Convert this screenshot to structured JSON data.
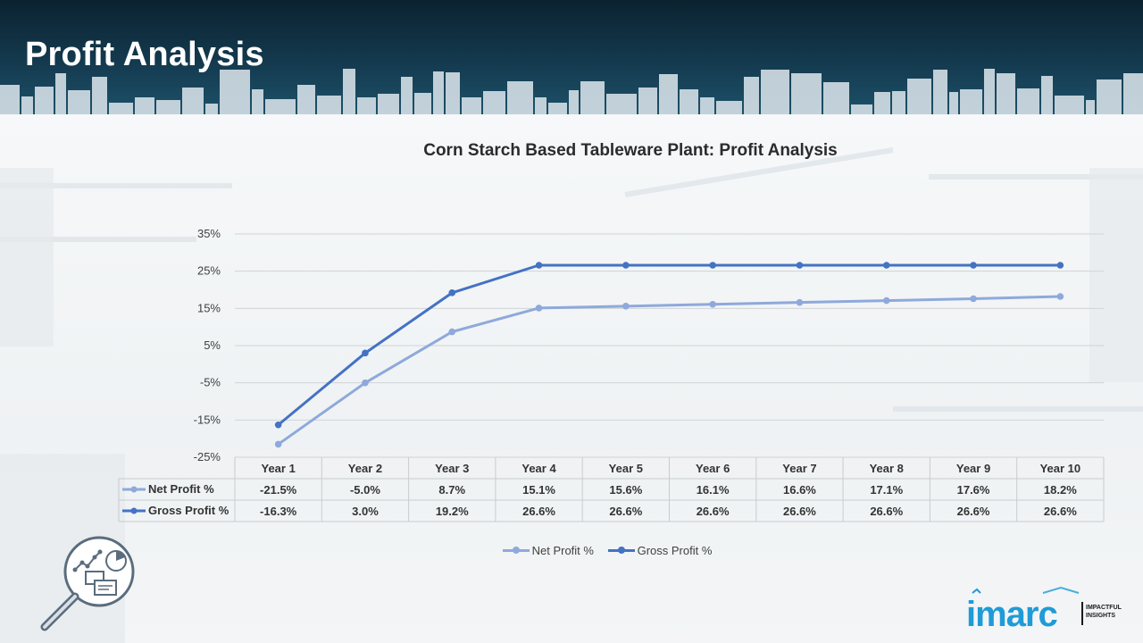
{
  "page": {
    "title": "Profit Analysis"
  },
  "chart_data": {
    "type": "line",
    "title": "Corn Starch Based Tableware Plant: Profit Analysis",
    "categories": [
      "Year 1",
      "Year 2",
      "Year 3",
      "Year 4",
      "Year 5",
      "Year 6",
      "Year 7",
      "Year 8",
      "Year 9",
      "Year 10"
    ],
    "series": [
      {
        "name": "Net Profit %",
        "values": [
          -21.5,
          -5.0,
          8.7,
          15.1,
          15.6,
          16.1,
          16.6,
          17.1,
          17.6,
          18.2
        ],
        "labels": [
          "-21.5%",
          "-5.0%",
          "8.7%",
          "15.1%",
          "15.6%",
          "16.1%",
          "16.6%",
          "17.1%",
          "17.6%",
          "18.2%"
        ],
        "color": "#8ea9db"
      },
      {
        "name": "Gross Profit %",
        "values": [
          -16.3,
          3.0,
          19.2,
          26.6,
          26.6,
          26.6,
          26.6,
          26.6,
          26.6,
          26.6
        ],
        "labels": [
          "-16.3%",
          "3.0%",
          "19.2%",
          "26.6%",
          "26.6%",
          "26.6%",
          "26.6%",
          "26.6%",
          "26.6%",
          "26.6%"
        ],
        "color": "#4472c4"
      }
    ],
    "y_ticks": [
      "35%",
      "25%",
      "15%",
      "5%",
      "-5%",
      "-15%",
      "-25%"
    ],
    "ylim": [
      -25,
      35
    ],
    "grid": true,
    "legend": "bottom",
    "data_table": true
  },
  "logo": {
    "text": "imarc",
    "tagline_1": "IMPACTFUL",
    "tagline_2": "INSIGHTS",
    "color": "#1f9bd7"
  },
  "icons": {
    "illustration": "analytics-magnifier-icon"
  }
}
